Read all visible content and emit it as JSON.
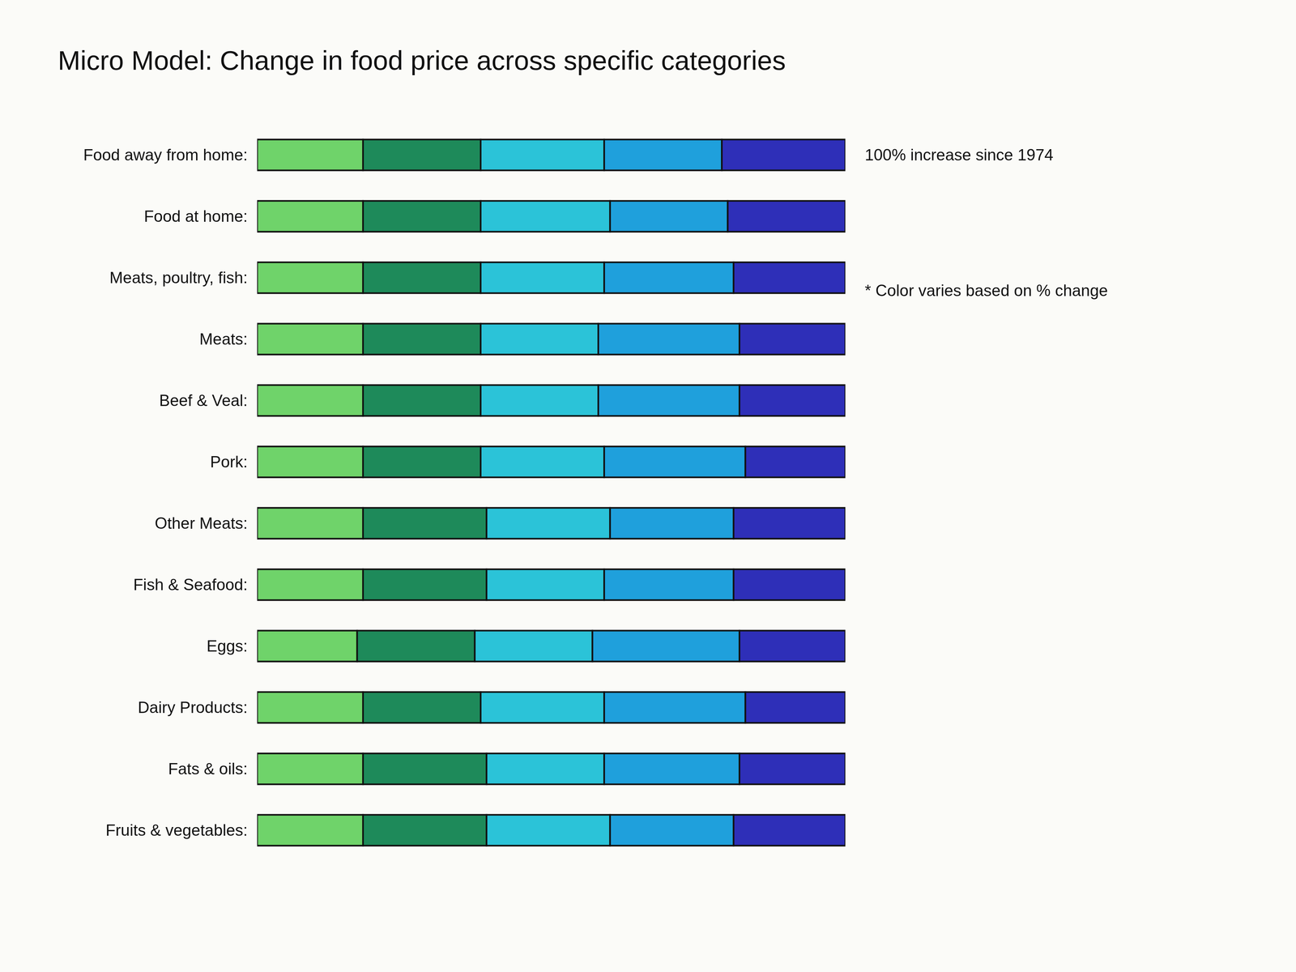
{
  "chart_data": {
    "type": "bar",
    "orientation": "horizontal",
    "stacked": true,
    "title": "Micro Model: Change in food price across specific categories",
    "annotations": [
      "100% increase since 1974",
      "* Color varies based on % change"
    ],
    "categories": [
      "Food away from home:",
      "Food at home:",
      "Meats, poultry, fish:",
      "Meats:",
      "Beef & Veal:",
      "Pork:",
      "Other Meats:",
      "Fish & Seafood:",
      "Eggs:",
      "Dairy Products:",
      "Fats & oils:",
      "Fruits & vegetables:"
    ],
    "series": [
      {
        "color": "#6fd36a",
        "values": [
          18,
          18,
          18,
          18,
          18,
          18,
          18,
          18,
          17,
          18,
          18,
          18
        ]
      },
      {
        "color": "#1e8a5a",
        "values": [
          20,
          20,
          20,
          20,
          20,
          20,
          21,
          21,
          20,
          20,
          21,
          21
        ]
      },
      {
        "color": "#2bc3d8",
        "values": [
          21,
          22,
          21,
          20,
          20,
          21,
          21,
          20,
          20,
          21,
          20,
          21
        ]
      },
      {
        "color": "#1fa0dc",
        "values": [
          20,
          20,
          22,
          24,
          24,
          24,
          21,
          22,
          25,
          24,
          23,
          21
        ]
      },
      {
        "color": "#2e2fb8",
        "values": [
          21,
          20,
          19,
          18,
          18,
          17,
          19,
          19,
          18,
          17,
          18,
          19
        ]
      }
    ],
    "xlim": [
      0,
      100
    ],
    "grid": false,
    "data_labels": false,
    "tick_labels": "y"
  }
}
